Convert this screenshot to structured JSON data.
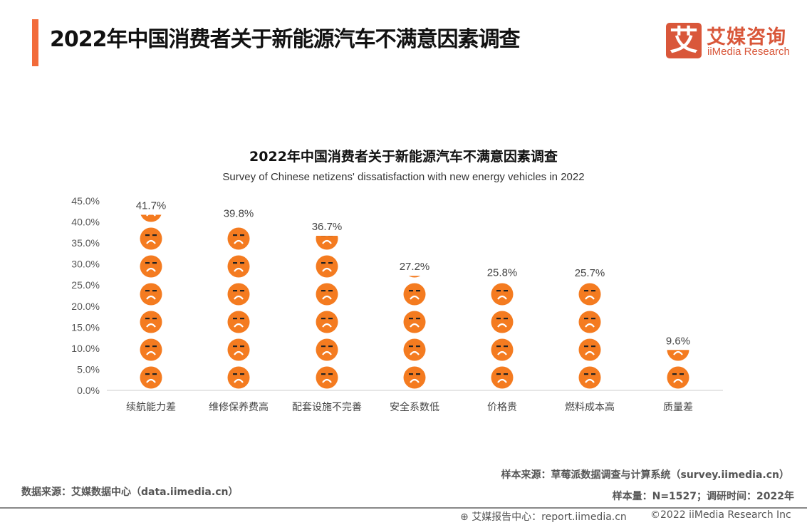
{
  "header": {
    "title": "2022年中国消费者关于新能源汽车不满意因素调查"
  },
  "logo": {
    "mark": "艾",
    "cn": "艾媒咨询",
    "en": "iiMedia Research"
  },
  "chart_data": {
    "type": "bar",
    "style": "pictograph",
    "icon": "sad-face-icon",
    "title": "2022年中国消费者关于新能源汽车不满意因素调查",
    "subtitle": "Survey of Chinese netizens' dissatisfaction with new energy vehicles in 2022",
    "categories": [
      "续航能力差",
      "维修保养费高",
      "配套设施不完善",
      "安全系数低",
      "价格贵",
      "燃料成本高",
      "质量差"
    ],
    "values": [
      41.7,
      39.8,
      36.7,
      27.2,
      25.8,
      25.7,
      9.6
    ],
    "data_labels": [
      "41.7%",
      "39.8%",
      "36.7%",
      "27.2%",
      "25.8%",
      "25.7%",
      "9.6%"
    ],
    "yticks": [
      "0.0%",
      "5.0%",
      "10.0%",
      "15.0%",
      "20.0%",
      "25.0%",
      "30.0%",
      "35.0%",
      "40.0%",
      "45.0%"
    ],
    "ylim": [
      0,
      45
    ],
    "grid": false,
    "colors": {
      "icon": "#f47b20"
    }
  },
  "notes": {
    "data_source": "数据来源：艾媒数据中心（data.iimedia.cn）",
    "sample_source": "样本来源：草莓派数据调查与计算系统（survey.iimedia.cn）",
    "sample_size": "样本量：N=1527；调研时间：2022年"
  },
  "footer": {
    "report": "艾媒报告中心：report.iimedia.cn",
    "copyright": "©2022  iiMedia Research  Inc"
  }
}
